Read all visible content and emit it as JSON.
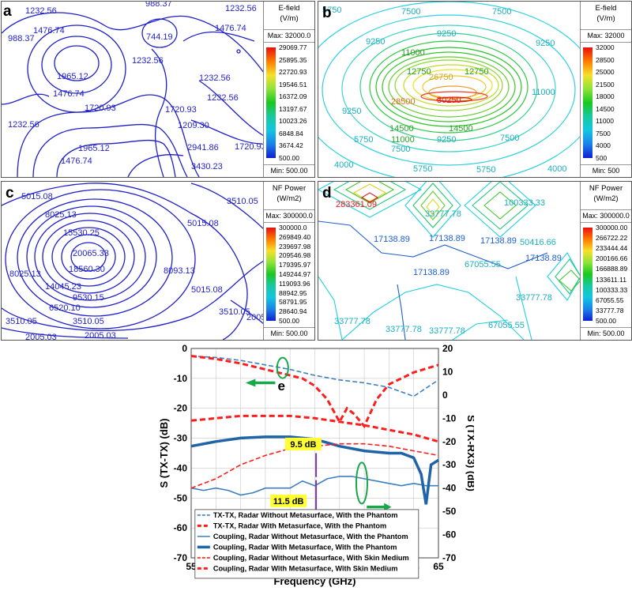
{
  "panels": [
    {
      "letter": "a",
      "legend": {
        "title": "E-field\n(V/m)",
        "max": "Max: 32000.0",
        "min": "Min: 500.00",
        "ticks": [
          "29069.77",
          "25895.35",
          "22720.93",
          "19546.51",
          "16372.09",
          "13197.67",
          "10023.26",
          "6848.84",
          "3674.42",
          "500.00"
        ]
      },
      "labels": [
        "1232.56",
        "988.37",
        "1232.56",
        "1476.74",
        "1476.74",
        "744.19",
        "988.37",
        "1232.56",
        "1965.12",
        "988.37",
        "1476.74",
        "1232.56",
        "1232.56",
        "1720.93",
        "1720.93",
        "1720.93",
        "1232.56",
        "1209.30",
        "1965.12",
        "988.37",
        "1476.74",
        "2941.86",
        "1720.93",
        "3430.23"
      ]
    },
    {
      "letter": "b",
      "legend": {
        "title": "E-field\n(V/m)",
        "max": "Max: 32000",
        "min": "Min: 500",
        "ticks": [
          "32000",
          "28500",
          "25000",
          "21500",
          "18000",
          "14500",
          "11000",
          "7500",
          "4000",
          "500"
        ]
      },
      "labels": [
        "5750",
        "7500",
        "7500",
        "9250",
        "9250",
        "9250",
        "11000",
        "12750",
        "12750",
        "11000",
        "26750",
        "28500",
        "30250",
        "14500",
        "14500",
        "11000",
        "9250",
        "7500",
        "9250",
        "5750",
        "7500",
        "5750",
        "5750",
        "4000",
        "4000",
        "11000",
        "9250"
      ]
    },
    {
      "letter": "c",
      "legend": {
        "title": "NF Power\n(W/m2)",
        "max": "Max: 300000.0",
        "min": "Min: 500.00",
        "ticks": [
          "300000.0",
          "269849.40",
          "239697.98",
          "209546.98",
          "179395.97",
          "149244.97",
          "119093.96",
          "88942.95",
          "58791.95",
          "28640.94",
          "500.00"
        ]
      },
      "labels": [
        "5015.08",
        "8025.13",
        "15530.25",
        "20065.33",
        "18560.30",
        "14045.23",
        "9530.15",
        "6520.10",
        "3510.05",
        "2005.03",
        "2005.03",
        "3510.05",
        "3510.05",
        "5015.08",
        "8093.13",
        "5015.08",
        "8025.13",
        "3510.05",
        "2005.03",
        "5015.08"
      ]
    },
    {
      "letter": "d",
      "legend": {
        "title": "NF Power\n(W/m2)",
        "max": "Max: 300000.0",
        "min": "Min: 500.00",
        "ticks": [
          "300000.00",
          "266722.22",
          "233444.44",
          "200166.66",
          "166888.89",
          "133611.11",
          "100333.33",
          "67055.55",
          "33777.78",
          "500.00"
        ]
      },
      "labels": [
        "283361.09",
        "33777.78",
        "100333.33",
        "17138.89",
        "17138.89",
        "17138.89",
        "17138.89",
        "50416.66",
        "17138.89",
        "67055.55",
        "33777.78",
        "33777.78",
        "33777.78",
        "33777.78",
        "67055.55",
        "33777.78",
        "17138.89"
      ]
    }
  ],
  "chart_data": {
    "type": "line",
    "panel_letter": "e",
    "xlabel": "Frequency (GHz)",
    "ylabel_left": "S (TX-TX) (dB)",
    "ylabel_right": "S (TX-RX3) (dB)",
    "xlim": [
      55,
      65
    ],
    "ylim_left": [
      -70,
      0
    ],
    "ylim_right": [
      -70,
      20
    ],
    "x_ticks": [
      "55",
      "56",
      "57",
      "58",
      "59",
      "60",
      "61",
      "62",
      "63",
      "64",
      "65"
    ],
    "y_ticks_left": [
      "0",
      "-10",
      "-20",
      "-30",
      "-40",
      "-50",
      "-60",
      "-70"
    ],
    "y_ticks_right": [
      "20",
      "10",
      "0",
      "-10",
      "-20",
      "-30",
      "-40",
      "-50",
      "-60",
      "-70"
    ],
    "annotations": [
      "9.5 dB",
      "11.5 dB"
    ],
    "series": [
      {
        "name": "TX-TX, Radar Without Metasurface, With the Phantom",
        "color": "#3d7fbf",
        "style": "dashed-double",
        "axis": "left",
        "x": [
          55,
          56,
          57,
          58,
          59,
          60,
          61,
          62,
          63,
          64,
          65
        ],
        "y": [
          -2.5,
          -3,
          -4,
          -5.5,
          -7,
          -9,
          -10.5,
          -11.5,
          -13,
          -16,
          -10.5
        ]
      },
      {
        "name": "TX-TX, Radar With Metasurface, With the Phantom",
        "color": "#ff1c1c",
        "style": "dashed",
        "axis": "left",
        "x": [
          55,
          56,
          57,
          58,
          59,
          59.5,
          60,
          60.5,
          61,
          61.3,
          61.6,
          62,
          62.5,
          63,
          64,
          65
        ],
        "y": [
          -2.5,
          -3.5,
          -5,
          -7,
          -9,
          -10,
          -12.5,
          -17,
          -24.5,
          -20,
          -22,
          -26,
          -17,
          -12,
          -8,
          -5.5
        ]
      },
      {
        "name": "Coupling, Radar Without Metasurface, With the Phantom",
        "color": "#3d7fbf",
        "style": "solid-double",
        "axis": "right",
        "x": [
          55,
          55.5,
          56,
          56.5,
          57,
          57.5,
          58,
          58.5,
          59,
          59.5,
          60,
          60.5,
          61,
          61.5,
          62,
          62.5,
          63,
          63.5,
          64,
          64.5,
          65
        ],
        "y": [
          -40,
          -41,
          -40,
          -41,
          -43,
          -42,
          -40,
          -40,
          -40,
          -37,
          -39,
          -36,
          -35,
          -35,
          -36,
          -37,
          -38,
          -39,
          -38,
          -39,
          -39
        ]
      },
      {
        "name": "Coupling, Radar With Metasurface, With the Phantom",
        "color": "#1f63a8",
        "style": "solid-thick",
        "axis": "right",
        "x": [
          55,
          56,
          57,
          58,
          59,
          60,
          61,
          62,
          63,
          63.5,
          64,
          64.3,
          64.5,
          64.7,
          65
        ],
        "y": [
          -22,
          -20,
          -18.5,
          -18,
          -18,
          -19,
          -22,
          -24,
          -25,
          -25,
          -27,
          -34,
          -47,
          -30,
          -28
        ]
      },
      {
        "name": "Coupling, Radar Without Metasurface, With Skin Medium",
        "color": "#ff1c1c",
        "style": "dashed-double",
        "axis": "right",
        "x": [
          55,
          56,
          57,
          58,
          59,
          60,
          61,
          62,
          63,
          64,
          65
        ],
        "y": [
          -40,
          -36,
          -30,
          -26,
          -23,
          -22,
          -21,
          -21,
          -22,
          -24,
          -26
        ]
      },
      {
        "name": "Coupling, Radar With Metasurface, With Skin Medium",
        "color": "#ff1c1c",
        "style": "dashed-thick",
        "axis": "right",
        "x": [
          55,
          56,
          57,
          58,
          59,
          60,
          61,
          62,
          63,
          64,
          65
        ],
        "y": [
          -11,
          -10,
          -9,
          -9,
          -9,
          -10,
          -11.5,
          -13,
          -15,
          -17,
          -20
        ]
      }
    ]
  }
}
